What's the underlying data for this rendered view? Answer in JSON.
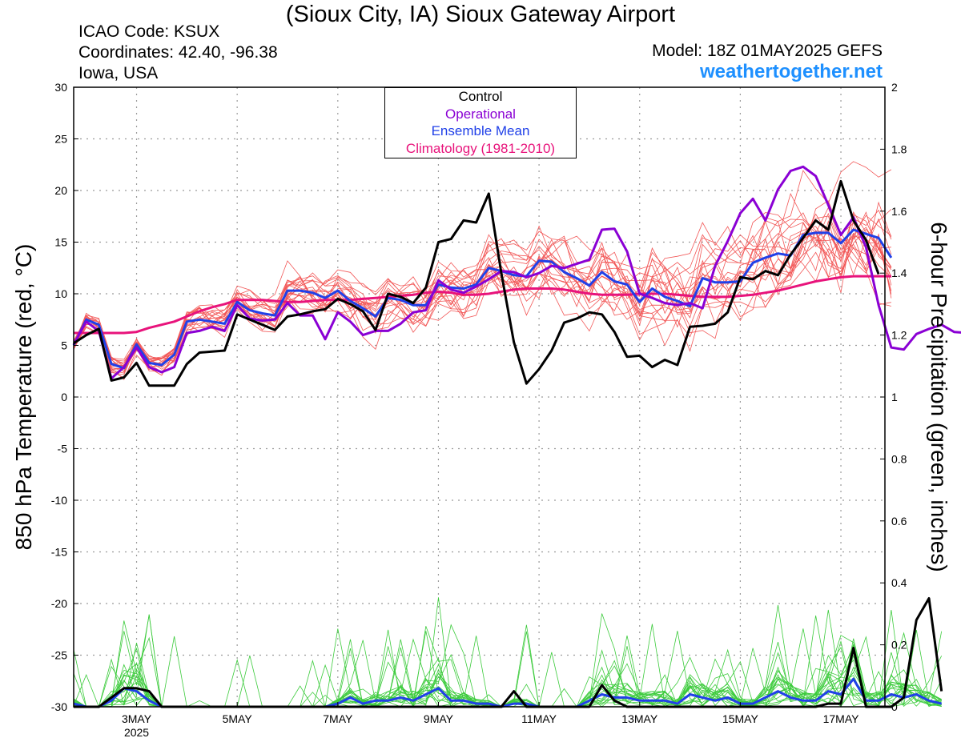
{
  "header": {
    "title": "(Sioux City, IA) Sioux Gateway Airport",
    "icao": "ICAO Code: KSUX",
    "coordinates": "Coordinates: 42.40, -96.38",
    "region": "Iowa, USA",
    "model": "Model: 18Z 01MAY2025 GEFS",
    "site": "weathertogether.net"
  },
  "chart_data": {
    "type": "line",
    "title": "(Sioux City, IA) Sioux Gateway Airport",
    "ylabel_left": "850 hPa Temperature (red, °C)",
    "ylabel_right": "6-hour Precipitation (green, inches)",
    "ylim_left": [
      -30,
      30
    ],
    "ylim_right": [
      0,
      2
    ],
    "yticks_left": [
      "30",
      "25",
      "20",
      "15",
      "10",
      "5",
      "0",
      "-5",
      "-10",
      "-15",
      "-20",
      "-25",
      "-30"
    ],
    "yticks_right": [
      "2",
      "1.8",
      "1.6",
      "1.4",
      "1.2",
      "1",
      "0.8",
      "0.6",
      "0.4",
      "0.2",
      "0"
    ],
    "xlim_days": [
      1.75,
      17.875
    ],
    "xticks": [
      {
        "day": 3,
        "label": "3MAY",
        "sub": "2025"
      },
      {
        "day": 5,
        "label": "5MAY",
        "sub": ""
      },
      {
        "day": 7,
        "label": "7MAY",
        "sub": ""
      },
      {
        "day": 9,
        "label": "9MAY",
        "sub": ""
      },
      {
        "day": 11,
        "label": "11MAY",
        "sub": ""
      },
      {
        "day": 13,
        "label": "13MAY",
        "sub": ""
      },
      {
        "day": 15,
        "label": "15MAY",
        "sub": ""
      },
      {
        "day": 17,
        "label": "17MAY",
        "sub": ""
      }
    ],
    "grid": true,
    "legend_position": "top-center",
    "legend": [
      {
        "name": "Control",
        "color": "#000000"
      },
      {
        "name": "Operational",
        "color": "#8a00d4"
      },
      {
        "name": "Ensemble Mean",
        "color": "#2040e8"
      },
      {
        "name": "Climatology (1981-2010)",
        "color": "#e8137b"
      }
    ],
    "colors": {
      "members_temp": "#f25757",
      "members_precip": "#3ccb3c",
      "control": "#000000",
      "operational": "#8a00d4",
      "mean": "#2040e8",
      "climatology": "#e8137b"
    },
    "x_start_day": 1.75,
    "x_step_days": 0.25,
    "ensemble_member_count": 20,
    "series": [
      {
        "key": "control",
        "values": [
          5.2,
          6,
          6.6,
          1.6,
          1.9,
          3.3,
          1.1,
          1.1,
          1.1,
          3.2,
          4.3,
          4.4,
          4.5,
          8,
          7.5,
          7,
          6.5,
          7.8,
          8,
          8.3,
          8.5,
          9.5,
          9,
          8.3,
          6.5,
          10,
          9.7,
          9.1,
          10.6,
          15,
          15.3,
          17.1,
          16.9,
          19.7,
          12,
          5.3,
          1.3,
          2.7,
          4.5,
          7.2,
          7.6,
          8.2,
          8,
          6.3,
          3.9,
          4,
          2.9,
          3.6,
          3.1,
          6.8,
          6.9,
          7.1,
          8.2,
          11.6,
          11.4,
          12.2,
          11.8,
          13.8,
          15.4,
          17.1,
          16.2,
          20.9,
          17.1,
          15.2,
          11.9
        ]
      },
      {
        "key": "operational",
        "values": [
          5.1,
          7.3,
          6.4,
          1.8,
          2.9,
          4.8,
          2.9,
          2.4,
          2.9,
          6.2,
          6.4,
          6.8,
          6.4,
          8.9,
          7.6,
          7.4,
          7.5,
          9.1,
          7.9,
          7.9,
          5.6,
          8.2,
          7.3,
          6,
          6.4,
          6.4,
          7.1,
          8.2,
          8.4,
          11.3,
          10.4,
          10.1,
          10.7,
          11.4,
          12.2,
          12.1,
          11.6,
          12,
          12.7,
          12.5,
          12.9,
          13.3,
          16.2,
          16.3,
          14.1,
          10,
          9.6,
          9.1,
          8.9,
          9.1,
          8.6,
          12.7,
          15.1,
          17.8,
          19.2,
          17.1,
          20.1,
          21.9,
          22.3,
          21.4,
          18.6,
          15.7,
          17.4,
          14.5,
          8.9,
          4.8,
          4.6,
          6.1,
          6.6,
          7,
          6.3,
          6.2
        ]
      },
      {
        "key": "mean",
        "values": [
          5,
          7.5,
          7,
          3.2,
          2.8,
          5.1,
          3.3,
          3.1,
          4.1,
          7.3,
          7.5,
          7.3,
          7.1,
          9.2,
          8.4,
          8.1,
          7.9,
          10.3,
          10.3,
          10.1,
          9.6,
          10.3,
          9.3,
          8.6,
          7.8,
          9.6,
          9.4,
          8.9,
          8.9,
          10.9,
          10.6,
          10.5,
          10.9,
          12.5,
          12.2,
          11.8,
          11.7,
          13.2,
          13.1,
          12.1,
          11.5,
          10.8,
          12.1,
          11.2,
          10.9,
          9.2,
          10.5,
          9.7,
          9.3,
          8.8,
          11.5,
          11.1,
          11.1,
          11.2,
          13,
          13.5,
          13.9,
          13.7,
          15.7,
          15.9,
          15.9,
          14.9,
          16.2,
          15.8,
          15.4,
          13.5
        ]
      },
      {
        "key": "climatology",
        "values": [
          6.2,
          6.2,
          6.2,
          6.2,
          6.2,
          6.3,
          6.7,
          7,
          7.3,
          7.8,
          8.3,
          8.7,
          9,
          9.4,
          9.4,
          9.4,
          9.3,
          9.2,
          9.2,
          9.3,
          9.4,
          9.4,
          9.4,
          9.5,
          9.6,
          9.7,
          9.8,
          9.9,
          10.1,
          10.2,
          10.1,
          9.9,
          9.9,
          10,
          10.2,
          10.4,
          10.5,
          10.5,
          10.5,
          10.4,
          10.2,
          10,
          9.9,
          9.9,
          9.9,
          10,
          10,
          10,
          9.9,
          9.8,
          9.7,
          9.7,
          9.7,
          9.8,
          9.9,
          10.1,
          10.3,
          10.6,
          10.9,
          11.2,
          11.4,
          11.6,
          11.7,
          11.7,
          11.7,
          11.7
        ]
      },
      {
        "key": "control_precip",
        "values": [
          0,
          0,
          0,
          0.03,
          0.06,
          0.06,
          0.05,
          0,
          0,
          0,
          0,
          0,
          0,
          0,
          0,
          0,
          0,
          0,
          0,
          0,
          0,
          0,
          0,
          0,
          0,
          0,
          0,
          0,
          0,
          0,
          0,
          0,
          0,
          0,
          0,
          0.05,
          0,
          0,
          0,
          0,
          0,
          0,
          0.07,
          0.02,
          0,
          0,
          0,
          0,
          0,
          0,
          0,
          0,
          0,
          0,
          0,
          0,
          0,
          0,
          0,
          0,
          0.01,
          0.01,
          0.19,
          0,
          0,
          0,
          0.03,
          0.28,
          0.35,
          0.05
        ]
      },
      {
        "key": "mean_precip",
        "values": [
          0.01,
          0,
          0,
          0.02,
          0.06,
          0.05,
          0.02,
          0,
          0,
          0,
          0,
          0,
          0,
          0,
          0,
          0,
          0,
          0,
          0,
          0,
          0,
          0.01,
          0.03,
          0.01,
          0.02,
          0.02,
          0.03,
          0.02,
          0.04,
          0.06,
          0.02,
          0.02,
          0.01,
          0.01,
          0,
          0.01,
          0.01,
          0,
          0,
          0,
          0,
          0.02,
          0.04,
          0.03,
          0.03,
          0.02,
          0.02,
          0.02,
          0.01,
          0.04,
          0.03,
          0.02,
          0.03,
          0.01,
          0.01,
          0.03,
          0.05,
          0.03,
          0.02,
          0.02,
          0.05,
          0.04,
          0.09,
          0.02,
          0.02,
          0.04,
          0.03,
          0.04,
          0.02,
          0.01
        ]
      }
    ]
  }
}
